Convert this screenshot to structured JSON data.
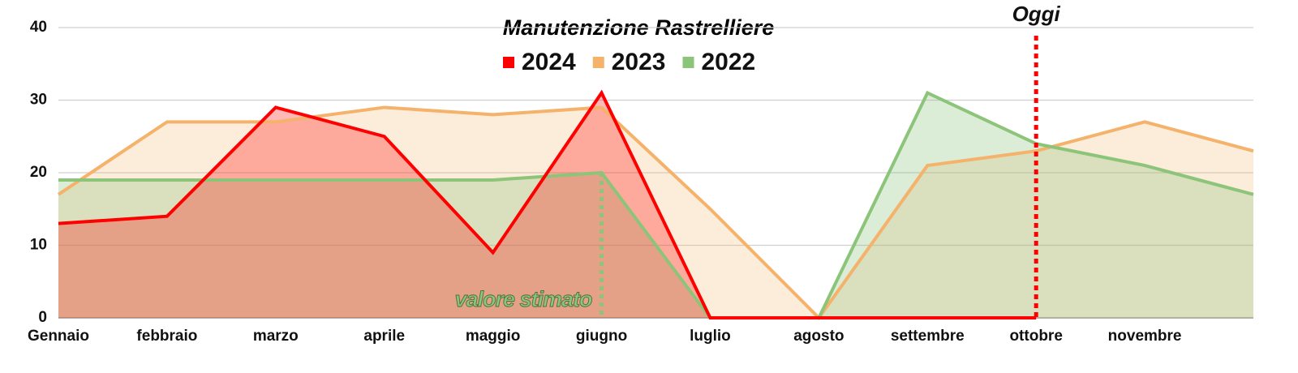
{
  "chart_data": {
    "type": "area",
    "title": "Manutenzione Rastrelliere",
    "categories": [
      "Gennaio",
      "febbraio",
      "marzo",
      "aprile",
      "maggio",
      "giugno",
      "luglio",
      "agosto",
      "settembre",
      "ottobre",
      "novembre",
      null
    ],
    "series": [
      {
        "name": "2024",
        "color": "#ff0000",
        "values": [
          13,
          14,
          29,
          25,
          9,
          31,
          0,
          0,
          0,
          0,
          null,
          null
        ]
      },
      {
        "name": "2023",
        "color": "#f4b26b",
        "values": [
          17,
          27,
          27,
          29,
          28,
          29,
          15,
          0,
          21,
          23,
          27,
          23
        ]
      },
      {
        "name": "2022",
        "color": "#8cc47a",
        "values": [
          19,
          19,
          19,
          19,
          19,
          20,
          0,
          0,
          31,
          24,
          21,
          17
        ]
      }
    ],
    "ylim": [
      0,
      40
    ],
    "yticks": [
      0,
      10,
      20,
      30,
      40
    ],
    "grid": true,
    "annotations": [
      "valore stimato",
      "Oggi"
    ]
  }
}
